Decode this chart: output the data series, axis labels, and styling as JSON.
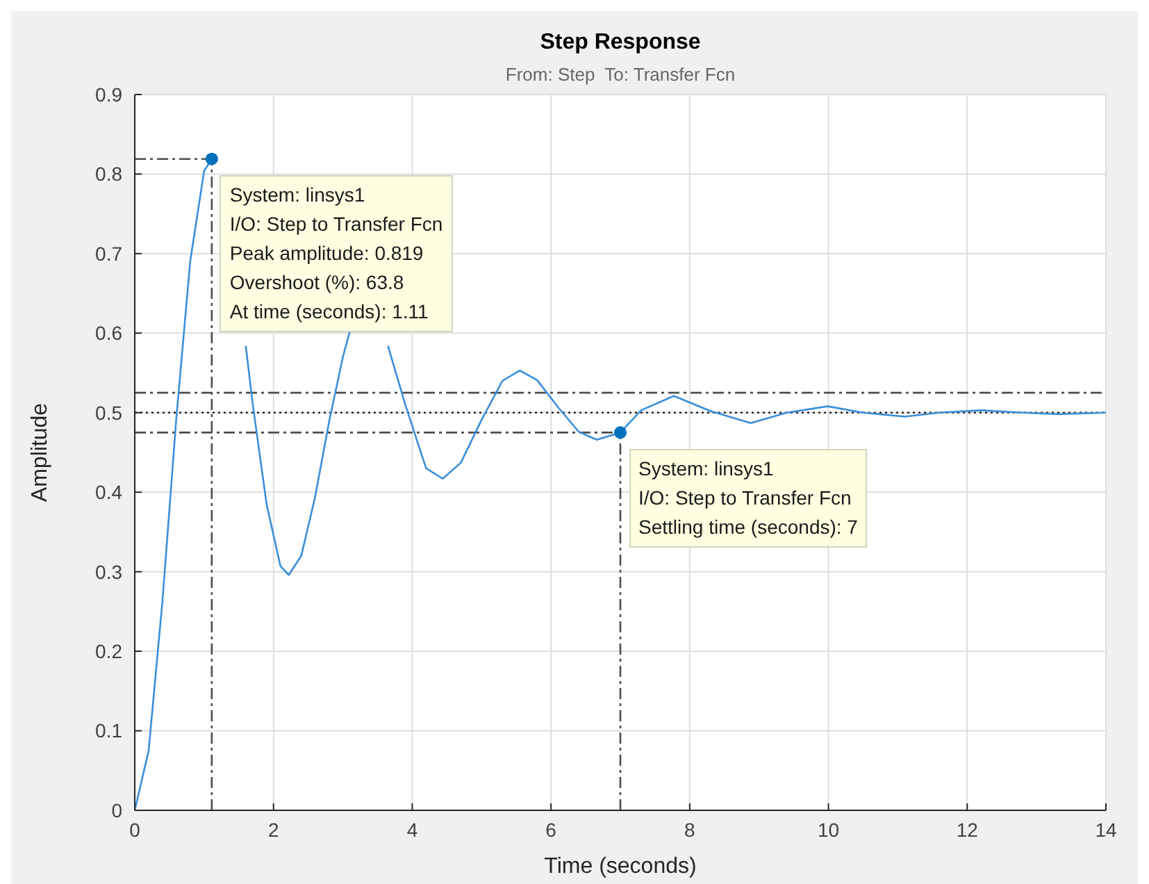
{
  "chart_data": {
    "type": "line",
    "title": "Step Response",
    "subtitle": "From: Step  To: Transfer Fcn",
    "xlabel": "Time (seconds)",
    "ylabel": "Amplitude",
    "series": [
      {
        "color": "#3a8fd9",
        "x": [
          0,
          0.2,
          0.4,
          0.6,
          0.8,
          1.0,
          1.11,
          1.3,
          1.5,
          1.6,
          1.7,
          1.9,
          2.1,
          2.22,
          2.4,
          2.6,
          2.8,
          3.0,
          3.1,
          3.33,
          3.6,
          3.65,
          3.9,
          4.2,
          4.44,
          4.7,
          5.0,
          5.3,
          5.55,
          5.8,
          6.1,
          6.4,
          6.66,
          7.0,
          7.3,
          7.77,
          8.3,
          8.88,
          9.4,
          9.99,
          10.5,
          11.1,
          11.6,
          12.2,
          12.8,
          13.3,
          14
        ],
        "values": [
          0,
          0.075,
          0.264,
          0.494,
          0.691,
          0.804,
          0.819,
          null,
          null,
          0.584,
          0.511,
          0.385,
          0.307,
          0.296,
          0.32,
          0.394,
          0.488,
          0.57,
          0.602,
          null,
          null,
          0.584,
          0.51,
          0.43,
          0.417,
          0.437,
          0.491,
          0.54,
          0.553,
          0.541,
          0.507,
          0.476,
          0.466,
          0.475,
          0.503,
          0.521,
          0.502,
          0.487,
          0.5,
          0.508,
          0.5,
          0.495,
          0.5,
          0.503,
          0.5,
          0.498,
          0.5
        ]
      },
      {
        "type": "line",
        "color": "#4d4d4d",
        "line_style": "dashed",
        "x": [
          0,
          1.11
        ],
        "values": [
          0.819,
          0.819
        ]
      },
      {
        "type": "scatter",
        "color": "#0072bd",
        "marker": "circle",
        "x": [
          1.11,
          7
        ],
        "values": [
          0.819,
          0.475
        ]
      }
    ],
    "xlim": [
      0,
      14
    ],
    "xticks": [
      0,
      2,
      4,
      6,
      8,
      10,
      12,
      14
    ],
    "ylim": [
      0,
      0.9
    ],
    "yticks": [
      0,
      0.1,
      0.2,
      0.3,
      0.4,
      0.5,
      0.6,
      0.7,
      0.8,
      0.9
    ],
    "grid": true,
    "marker": "none",
    "line_style": "solid",
    "ref_lines": [
      {
        "axis": "y",
        "value": 0.5,
        "line_style": "dotted",
        "color": "#262626"
      },
      {
        "axis": "y",
        "value": 0.525,
        "line_style": "dashed",
        "color": "#4d4d4d"
      },
      {
        "axis": "y",
        "value": 0.475,
        "line_style": "dashed",
        "color": "#4d4d4d"
      },
      {
        "axis": "x",
        "value": 1.11,
        "line_style": "dashed",
        "color": "#4d4d4d"
      },
      {
        "axis": "x",
        "value": 7,
        "line_style": "dashed",
        "color": "#4d4d4d"
      }
    ],
    "annotations": [
      {
        "text": "System: linsys1\nI/O: Step to Transfer Fcn\nPeak amplitude: 0.819\nOvershoot (%): 63.8\nAt time (seconds): 1.11",
        "x": 1.11,
        "y": 0.819
      },
      {
        "text": "System: linsys1\nI/O: Step to Transfer Fcn\nSettling time (seconds): 7",
        "x": 7,
        "y": 0.475
      }
    ]
  }
}
